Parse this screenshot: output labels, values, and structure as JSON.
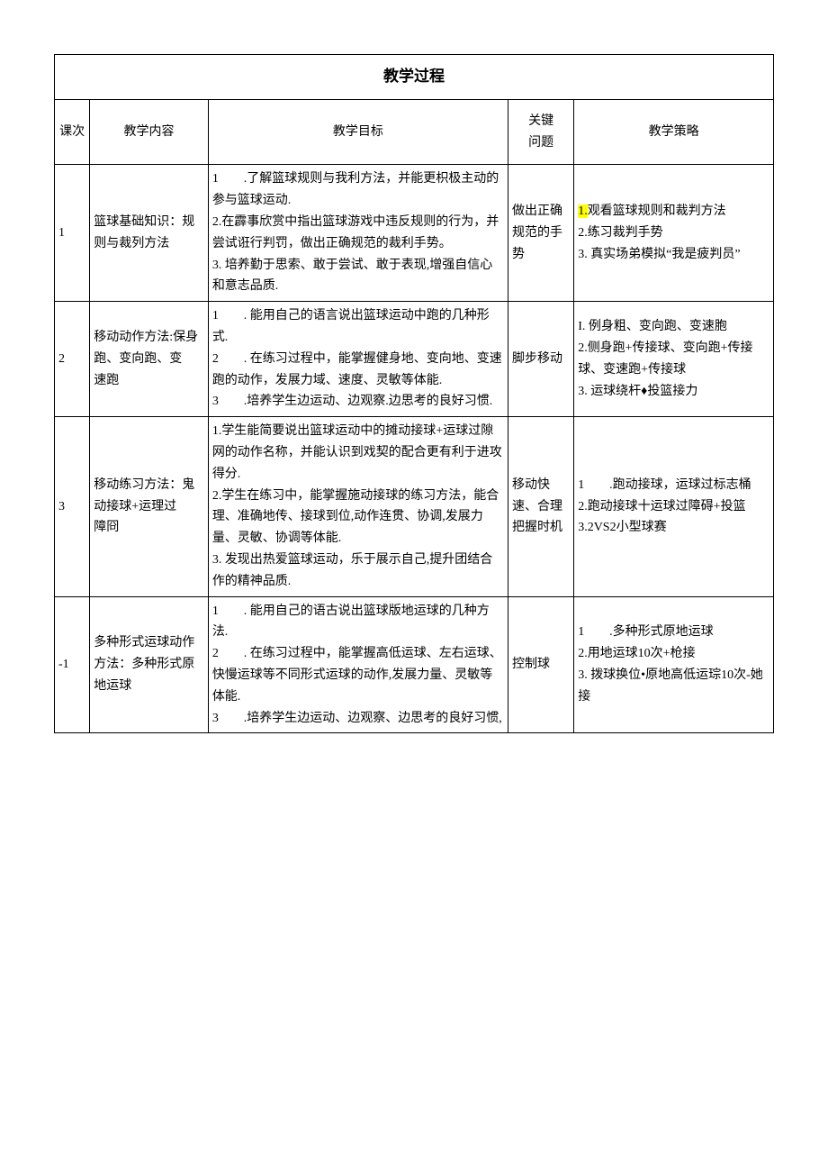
{
  "table": {
    "title": "教学过程",
    "headers": [
      "课次",
      "教学内容",
      "教学目标",
      "关键\n问题",
      "教学策略"
    ],
    "rows": [
      {
        "num": "1",
        "content": "篮球基础知识：规则与裁列方法",
        "goal": "1　　.了解篮球规则与我利方法，并能更枳极主动的参与篮球运动.\n2.在霹事欣赏中指出篮球游戏中违反规则的行为，并尝试诳行判罚，做出正确规范的裁利手势。\n3. 培养勤于思索、敢于尝试、敢于表现,增强自信心和意志品质.",
        "key": "做出正确规范的手势",
        "strategy_hl": "1.",
        "strategy_rest": "观看篮球规则和裁判方法\n2.练习裁判手势\n3. 真实场弟模拟“我是疲判员”"
      },
      {
        "num": "2",
        "content": "移动动作方法:保身跑、变向跑、变\n速跑",
        "goal": "1　　. 能用自己的语言说出篮球运动中跑的几种形式.\n2　　. 在练习过程中，能掌握健身地、变向地、变速跑的动作，发展力域、速度、灵敏等体能.\n3　　.培养学生边运动、边观察.边思考的良好习惯.",
        "key": "脚步移动",
        "strategy": "I. 例身粗、变向跑、变速胞\n2.侧身跑+传接球、变向跑+传接球、变速跑+传接球\n3. 运球绕杆♦投篮接力"
      },
      {
        "num": "3",
        "content": "移动练习方法：鬼动接球+运理过\n障冏",
        "goal": "1.学生能简要说出篮球运动中的摊动接球+运球过隙网的动作名称，并能认识到戏契的配合更有利于进攻得分.\n2.学生在练习中，能掌握施动接球的练习方法，能合理、准确地传、接球到位,动作连贯、协调,发展力量、灵敏、协调等体能.\n3. 发现出热爱篮球运动，乐于展示自己,提升团结合作的精神品质.",
        "key": "移动快速、合理把握时机",
        "strategy": "1　　.跑动接球，运球过标志桶\n2.跑动接球十运球过障碍+投篮\n3.2VS2小型球赛"
      },
      {
        "num": "-1",
        "content": "多种形式运球动作方法：多种形式原地运球",
        "goal": "1　　. 能用自己的语古说出篮球版地运球的几种方法.\n2　　. 在练习过程中，能掌握高低运球、左右运球、快慢运球等不同形式运球的动作,发展力量、灵敏等体能.\n3　　.培养学生边运动、边观察、边思考的良好习惯,",
        "key": "控制球",
        "strategy": "1　　.多种形式原地运球\n2.用地运球10次+枪接\n3. 拨球换位•原地高低运琮10次-她接"
      }
    ]
  }
}
